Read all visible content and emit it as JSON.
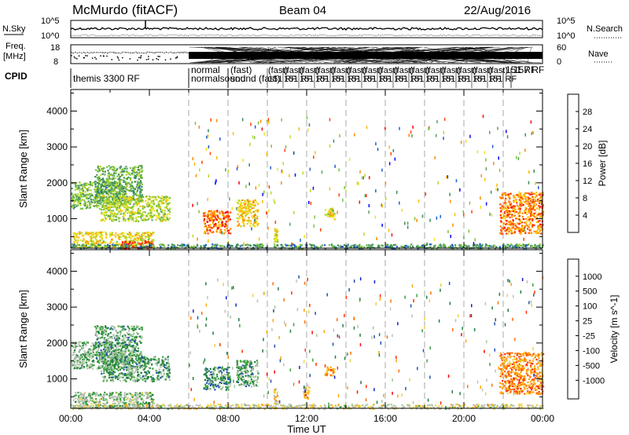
{
  "chart_data": {
    "type": "heatmap",
    "header": {
      "station": "McMurdo (fitACF)",
      "beam": "Beam 04",
      "date": "22/Aug/2016"
    },
    "top_strips": {
      "nsky": {
        "label": "N.Sky",
        "ticks": [
          "10^5",
          "10^0"
        ],
        "right_label": "N.Search",
        "right_ticks": [
          "10^5",
          "10^0"
        ]
      },
      "freq": {
        "label_line1": "Freq.",
        "label_line2": "[MHz]",
        "ticks": [
          "18",
          "8"
        ],
        "right_label": "Nave",
        "right_ticks": [
          "60",
          "0"
        ]
      },
      "cpid": {
        "label": "CPID",
        "segments": [
          {
            "start_hour": 0.0,
            "text": "themis 3300 RF"
          },
          {
            "start_hour": 6.0,
            "text": "normal"
          },
          {
            "start_hour": 6.0,
            "text": "normalsound"
          },
          {
            "start_hour": 8.0,
            "text": "(fast)"
          },
          {
            "start_hour": 8.0,
            "text": "sound (fast)"
          },
          {
            "start_hour": 22.0,
            "text": "151 RF"
          },
          {
            "start_hour": 22.4,
            "text": "157 RF"
          }
        ]
      }
    },
    "panels": [
      {
        "name": "power",
        "ylabel": "Slant Range [km]",
        "ylim": [
          180,
          4600
        ],
        "yticks": [
          1000,
          2000,
          3000,
          4000
        ],
        "colorbar": {
          "label": "Power [dB]",
          "min": 0,
          "max": 32,
          "ticks": [
            4,
            8,
            12,
            16,
            20,
            24,
            28
          ],
          "colors": [
            "#0000ff",
            "#1f5fd0",
            "#3a8c5a",
            "#57a25d",
            "#7cc43a",
            "#b8d82a",
            "#f0e020",
            "#ffb800",
            "#ff8800",
            "#ff4000",
            "#ff0000"
          ]
        },
        "echo_regions": [
          {
            "t0": 0.0,
            "t1": 2.8,
            "r0": 1300,
            "r1": 2050,
            "level": 0.38
          },
          {
            "t0": 1.2,
            "t1": 3.6,
            "r0": 1500,
            "r1": 2500,
            "level": 0.32
          },
          {
            "t0": 1.5,
            "t1": 5.0,
            "r0": 950,
            "r1": 1650,
            "level": 0.5
          },
          {
            "t0": 0.1,
            "t1": 4.2,
            "r0": 200,
            "r1": 650,
            "level": 0.6
          },
          {
            "t0": 2.5,
            "t1": 4.1,
            "r0": 180,
            "r1": 400,
            "level": 0.95
          },
          {
            "t0": 6.7,
            "t1": 8.1,
            "r0": 600,
            "r1": 1250,
            "level": 0.85
          },
          {
            "t0": 8.4,
            "t1": 9.5,
            "r0": 800,
            "r1": 1550,
            "level": 0.65
          },
          {
            "t0": 10.3,
            "t1": 10.5,
            "r0": 300,
            "r1": 750,
            "level": 0.55
          },
          {
            "t0": 12.9,
            "t1": 13.4,
            "r0": 1000,
            "r1": 1350,
            "level": 0.55
          },
          {
            "t0": 21.8,
            "t1": 24.0,
            "r0": 600,
            "r1": 1750,
            "level": 0.8
          },
          {
            "t0": 0.0,
            "t1": 24.0,
            "r0": 180,
            "r1": 310,
            "level": 0.25
          }
        ]
      },
      {
        "name": "velocity",
        "ylabel": "Slant Range [km]",
        "ylim": [
          180,
          4600
        ],
        "yticks": [
          1000,
          2000,
          3000,
          4000
        ],
        "colorbar": {
          "label": "Velocity [m s^-1]",
          "ticks": [
            "1000",
            "500",
            "100",
            "25",
            "-25",
            "-100",
            "-500",
            "-1000"
          ],
          "colors": [
            "#1020c8",
            "#2050b0",
            "#208040",
            "#40a040",
            "#a8c8a0",
            "#c0c0c0",
            "#f0d040",
            "#ffa500",
            "#ff7000",
            "#ff3000",
            "#ff0000"
          ]
        },
        "echo_regions": [
          {
            "t0": 0.0,
            "t1": 2.8,
            "r0": 1300,
            "r1": 2050,
            "level": 0.35
          },
          {
            "t0": 1.2,
            "t1": 3.6,
            "r0": 1500,
            "r1": 2500,
            "level": 0.3
          },
          {
            "t0": 1.5,
            "t1": 5.0,
            "r0": 950,
            "r1": 1650,
            "level": 0.3
          },
          {
            "t0": 0.1,
            "t1": 4.2,
            "r0": 200,
            "r1": 650,
            "level": 0.4
          },
          {
            "t0": 6.7,
            "t1": 8.1,
            "r0": 700,
            "r1": 1350,
            "level": 0.25
          },
          {
            "t0": 8.4,
            "t1": 9.5,
            "r0": 800,
            "r1": 1550,
            "level": 0.3
          },
          {
            "t0": 10.3,
            "t1": 10.5,
            "r0": 300,
            "r1": 750,
            "level": 0.6
          },
          {
            "t0": 11.8,
            "t1": 12.1,
            "r0": 450,
            "r1": 850,
            "level": 0.7
          },
          {
            "t0": 12.9,
            "t1": 13.4,
            "r0": 1100,
            "r1": 1350,
            "level": 0.7
          },
          {
            "t0": 21.8,
            "t1": 24.0,
            "r0": 600,
            "r1": 1750,
            "level": 0.75
          },
          {
            "t0": 0.0,
            "t1": 24.0,
            "r0": 180,
            "r1": 310,
            "level": 0.5
          }
        ]
      }
    ],
    "x_axis": {
      "label": "Time UT",
      "xlim": [
        0,
        24
      ],
      "tick_labels": [
        "00:00",
        "04:00",
        "08:00",
        "12:00",
        "16:00",
        "20:00",
        "00:00"
      ],
      "tick_hours": [
        0,
        4,
        8,
        12,
        16,
        20,
        24
      ],
      "minor_tick_hours": [
        2,
        6,
        10,
        14,
        18,
        22
      ],
      "dashed_marker_hours": [
        6.0,
        8.0,
        10.0,
        12.0,
        14.0,
        16.0,
        18.0,
        20.0,
        22.0
      ]
    }
  }
}
